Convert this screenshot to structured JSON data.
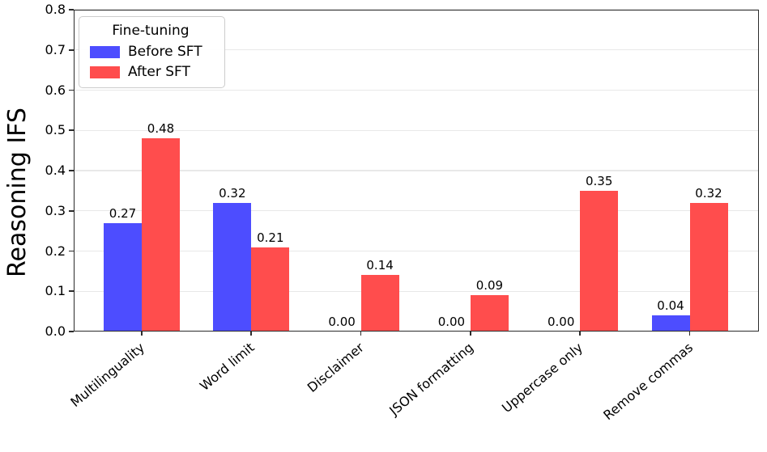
{
  "chart_data": {
    "type": "bar",
    "title": "",
    "xlabel": "",
    "ylabel": "Reasoning IFS",
    "categories": [
      "Multilinguality",
      "Word limit",
      "Disclaimer",
      "JSON formatting",
      "Uppercase only",
      "Remove commas"
    ],
    "series": [
      {
        "name": "Before SFT",
        "color": "#4d4dff",
        "values": [
          0.27,
          0.32,
          0.0,
          0.0,
          0.0,
          0.04
        ]
      },
      {
        "name": "After SFT",
        "color": "#ff4d4d",
        "values": [
          0.48,
          0.21,
          0.14,
          0.09,
          0.35,
          0.32
        ]
      }
    ],
    "bar_value_label_format": "2-decimal",
    "ylim": [
      0.0,
      0.8
    ],
    "yticks": [
      "0.0",
      "0.1",
      "0.2",
      "0.3",
      "0.4",
      "0.5",
      "0.6",
      "0.7",
      "0.8"
    ],
    "grid": "horizontal",
    "legend": {
      "title": "Fine-tuning",
      "position": "upper-left",
      "entries": [
        "Before SFT",
        "After SFT"
      ]
    },
    "colors": {
      "grid": "#e8e8e8",
      "spine": "#2b2b2b",
      "text": "#000000",
      "background": "#ffffff"
    }
  }
}
